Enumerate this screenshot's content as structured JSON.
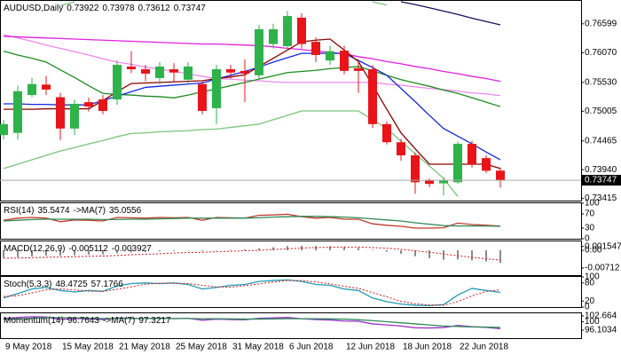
{
  "chart_data": [
    {
      "type": "candlestick",
      "title": "AUDUSD,Daily",
      "categories": [
        "9 May 2018",
        null,
        null,
        null,
        "15 May 2018",
        null,
        null,
        null,
        "21 May 2018",
        null,
        null,
        null,
        "25 May 2018",
        null,
        null,
        null,
        "31 May 2018",
        null,
        null,
        null,
        "6 Jun 2018",
        null,
        null,
        null,
        "12 Jun 2018",
        null,
        null,
        null,
        "18 Jun 2018",
        null,
        null,
        null,
        "22 Jun 2018",
        null,
        null,
        null
      ],
      "open": [
        0.7457,
        0.7461,
        0.753,
        0.7549,
        0.7526,
        0.7469,
        0.7517,
        0.7522,
        0.7522,
        0.7582,
        0.7577,
        0.7561,
        0.7577,
        0.7558,
        0.755,
        0.7506,
        0.7577,
        0.7574,
        0.7566,
        0.7623,
        0.7619,
        0.7671,
        0.7627,
        0.7593,
        0.7611,
        0.7579,
        0.7577,
        0.7477,
        0.7444,
        0.742,
        0.7374,
        0.7369,
        0.7371,
        0.7441,
        0.7415,
        0.73922
      ],
      "high": [
        0.7485,
        0.7547,
        0.7561,
        0.7565,
        0.7534,
        0.7522,
        0.7525,
        0.753,
        0.7593,
        0.761,
        0.7585,
        0.759,
        0.7588,
        0.759,
        0.7555,
        0.7585,
        0.7585,
        0.7595,
        0.7658,
        0.766,
        0.7683,
        0.7679,
        0.7635,
        0.762,
        0.762,
        0.7593,
        0.7585,
        0.7482,
        0.745,
        0.7425,
        0.7378,
        0.738,
        0.7445,
        0.7447,
        0.742,
        0.73978
      ],
      "low": [
        0.7449,
        0.7449,
        0.7526,
        0.753,
        0.7448,
        0.7457,
        0.75,
        0.7495,
        0.7512,
        0.757,
        0.7555,
        0.755,
        0.7555,
        0.755,
        0.7495,
        0.7477,
        0.756,
        0.7517,
        0.756,
        0.7615,
        0.7612,
        0.7615,
        0.759,
        0.7585,
        0.7568,
        0.7534,
        0.747,
        0.744,
        0.741,
        0.735,
        0.7362,
        0.7347,
        0.7368,
        0.7398,
        0.7388,
        0.73612
      ],
      "close": [
        0.7477,
        0.7537,
        0.755,
        0.754,
        0.7469,
        0.7514,
        0.7509,
        0.7501,
        0.7585,
        0.7577,
        0.7569,
        0.7582,
        0.7571,
        0.7582,
        0.7501,
        0.7577,
        0.7571,
        0.7569,
        0.765,
        0.765,
        0.7674,
        0.7623,
        0.7603,
        0.761,
        0.7574,
        0.7574,
        0.7477,
        0.7444,
        0.742,
        0.7371,
        0.7368,
        0.7374,
        0.7441,
        0.7404,
        0.7392,
        0.73747
      ],
      "up_color": "#2db34a",
      "down_color": "#e8141a",
      "series": [
        {
          "color": "#7ac47a",
          "values": [
            null,
            null,
            null,
            null,
            0.7693,
            0.77,
            null,
            null,
            null,
            null,
            null,
            null,
            null,
            null,
            null,
            null,
            null,
            null,
            null,
            null,
            null,
            null,
            null,
            null,
            null,
            null,
            0.77,
            0.7694,
            null,
            null,
            null,
            null,
            null,
            null,
            null,
            null
          ]
        },
        {
          "color": "#7ac47a",
          "values": [
            0.7396,
            0.7404,
            0.7412,
            0.742,
            0.7428,
            0.7434,
            0.7441,
            0.7447,
            0.7454,
            0.746,
            0.7461,
            0.7463,
            0.7464,
            0.7465,
            0.7467,
            0.7468,
            0.7471,
            0.7474,
            0.7477,
            0.7485,
            0.7493,
            0.7501,
            0.7501,
            0.7501,
            0.7501,
            0.7501,
            0.7485,
            0.7469,
            0.7446,
            0.7423,
            0.7401,
            0.7378,
            0.7345,
            null,
            null,
            null
          ]
        },
        {
          "color": "#14145a",
          "values": [
            null,
            null,
            null,
            null,
            null,
            null,
            null,
            null,
            null,
            null,
            null,
            null,
            null,
            null,
            null,
            null,
            null,
            null,
            null,
            null,
            null,
            null,
            null,
            null,
            null,
            null,
            null,
            null,
            0.77,
            0.7695,
            0.7689,
            0.7683,
            0.7677,
            0.767,
            0.7664,
            0.7658
          ]
        },
        {
          "color": "#ee88ee",
          "values": [
            0.764,
            0.7634,
            0.7628,
            0.7621,
            0.7615,
            0.7609,
            0.7603,
            0.7596,
            0.759,
            0.7586,
            0.7581,
            0.7577,
            0.7573,
            0.7569,
            0.7564,
            0.756,
            0.7559,
            0.7557,
            0.7556,
            0.7554,
            0.7553,
            0.7553,
            0.7553,
            0.7553,
            0.7553,
            0.7553,
            0.7553,
            0.755,
            0.7548,
            0.7545,
            0.7542,
            0.754,
            0.7537,
            0.7534,
            0.7532,
            0.7529
          ]
        },
        {
          "color": "#e020e0",
          "values": [
            0.7637,
            0.7636,
            0.7635,
            0.7634,
            0.7633,
            0.7632,
            0.7631,
            0.763,
            0.7629,
            0.7628,
            0.7627,
            0.7626,
            0.7625,
            0.7624,
            0.7623,
            0.7623,
            0.7622,
            0.7621,
            0.762,
            0.7618,
            0.7615,
            0.7613,
            0.761,
            0.7608,
            0.7605,
            0.76,
            0.7596,
            0.7591,
            0.7587,
            0.7582,
            0.7578,
            0.7573,
            0.7569,
            0.7564,
            0.756,
            0.7555
          ]
        },
        {
          "color": "#1e8c1e",
          "values": [
            0.761,
            0.7603,
            0.7597,
            0.759,
            0.7576,
            0.7562,
            0.7547,
            0.7533,
            0.7531,
            0.753,
            0.7528,
            0.7527,
            0.7525,
            0.753,
            0.7536,
            0.7541,
            0.7547,
            0.7553,
            0.7559,
            0.7565,
            0.7571,
            0.7573,
            0.7575,
            0.7578,
            0.758,
            0.7582,
            0.7574,
            0.7566,
            0.7558,
            0.7552,
            0.7546,
            0.7539,
            0.7533,
            0.7525,
            0.7517,
            0.7509
          ]
        },
        {
          "color": "#1428e0",
          "values": [
            0.7514,
            0.7514,
            0.7513,
            0.7513,
            0.7512,
            0.7512,
            0.7512,
            0.752,
            0.7528,
            0.7536,
            0.7544,
            0.7546,
            0.7548,
            0.755,
            0.7552,
            0.7559,
            0.7566,
            0.7573,
            0.7581,
            0.759,
            0.7598,
            0.7606,
            0.7606,
            0.7606,
            0.7606,
            0.7593,
            0.758,
            0.7566,
            0.7542,
            0.7518,
            0.7493,
            0.7469,
            0.7455,
            0.7441,
            0.7426,
            0.7412
          ]
        },
        {
          "color": "#8b0000",
          "values": [
            0.7504,
            0.7504,
            0.7504,
            0.7505,
            0.7505,
            0.7505,
            0.7505,
            0.752,
            0.7536,
            0.7551,
            0.7552,
            0.7553,
            0.7554,
            0.7555,
            0.7556,
            0.756,
            0.7563,
            0.7567,
            0.7582,
            0.7597,
            0.7612,
            0.7627,
            0.763,
            0.7632,
            0.7612,
            0.7591,
            0.7548,
            0.7504,
            0.7461,
            0.7432,
            0.7404,
            0.7404,
            0.7404,
            0.7404,
            0.7404,
            0.7396
          ]
        }
      ],
      "ylim": [
        0.7336,
        0.77
      ],
      "yticks": [
        0.76599,
        {
          "value": 0.7607,
          "label": "0.76070"
        },
        {
          "value": 0.7553,
          "label": "0.75530"
        },
        0.75005,
        0.74465,
        {
          "value": 0.7394,
          "label": "0.73940"
        },
        0.73415
      ]
    },
    {
      "type": "line",
      "series": [
        {
          "name": "RSI(14)",
          "color": "#c0392b",
          "values": [
            52,
            58,
            60,
            58,
            48,
            53,
            52,
            50,
            60,
            59,
            58,
            60,
            59,
            60,
            52,
            60,
            59,
            58,
            66,
            67,
            69,
            62,
            58,
            60,
            55,
            55,
            42,
            38,
            35,
            30,
            30,
            31,
            44,
            40,
            38,
            35.5474
          ]
        },
        {
          "name": "->MA(7)",
          "color": "#2e8b57",
          "values": [
            50,
            52,
            54,
            55,
            55,
            55,
            55,
            54,
            54,
            55,
            55,
            56,
            57,
            58,
            58,
            58,
            58,
            58,
            59,
            61,
            62,
            63,
            63,
            62,
            61,
            59,
            56,
            53,
            50,
            45,
            41,
            37,
            36,
            36,
            36,
            35.0556
          ]
        }
      ],
      "ylim": [
        0,
        100
      ],
      "yticks": [
        100,
        70,
        30,
        0
      ]
    },
    {
      "type": "bar",
      "series": [
        {
          "name": "MACD(12,26,9)",
          "style": "bar",
          "color": "#8c8c8c",
          "values": [
            -0.003,
            -0.0028,
            -0.0025,
            -0.0022,
            -0.0022,
            -0.002,
            -0.0018,
            -0.0017,
            -0.0012,
            -0.0008,
            -0.0006,
            -0.0004,
            -0.0003,
            -0.0001,
            -0.0003,
            0.0,
            0.0002,
            0.0003,
            0.0008,
            0.0012,
            0.0017,
            0.0018,
            0.0017,
            0.0016,
            0.0013,
            0.001,
            0.0002,
            -0.0006,
            -0.0014,
            -0.0024,
            -0.0032,
            -0.0038,
            -0.0037,
            -0.004,
            -0.0045,
            -0.005112
          ]
        },
        {
          "style": "dotted",
          "color": "#e8141a",
          "values": [
            -0.0032,
            -0.0031,
            -0.003,
            -0.0028,
            -0.0027,
            -0.0026,
            -0.0024,
            -0.0023,
            -0.0021,
            -0.0018,
            -0.0016,
            -0.0014,
            -0.0011,
            -0.0009,
            -0.0008,
            -0.0006,
            -0.0004,
            -0.0002,
            0.0,
            0.0003,
            0.0006,
            0.0009,
            0.0011,
            0.0012,
            0.0013,
            0.0013,
            0.0011,
            0.0008,
            0.0004,
            -0.0002,
            -0.0008,
            -0.0015,
            -0.0022,
            -0.0028,
            -0.0034,
            -0.003927
          ]
        }
      ],
      "ylim": [
        -0.00997,
        0.00356
      ],
      "yticks": [
        0.001547,
        {
          "value": 0,
          "label": "0.00"
        },
        -0.00712
      ]
    },
    {
      "type": "line",
      "series": [
        {
          "name": "Stoch(5,3,3)",
          "color": "#1f9bb4",
          "values": [
            30,
            45,
            60,
            65,
            55,
            50,
            55,
            52,
            70,
            78,
            80,
            78,
            80,
            75,
            60,
            65,
            72,
            75,
            85,
            88,
            90,
            85,
            75,
            72,
            60,
            55,
            30,
            18,
            10,
            6,
            5,
            8,
            40,
            62,
            55,
            48.4725
          ]
        },
        {
          "style": "dotted",
          "color": "#e8141a",
          "values": [
            35,
            38,
            47,
            57,
            60,
            57,
            53,
            52,
            59,
            67,
            76,
            79,
            79,
            78,
            72,
            67,
            66,
            71,
            77,
            83,
            88,
            88,
            83,
            77,
            69,
            62,
            48,
            34,
            19,
            11,
            7,
            6,
            18,
            37,
            52,
            57.1766
          ]
        }
      ],
      "ylim": [
        0,
        100
      ],
      "yticks": [
        100,
        80,
        20,
        0
      ]
    },
    {
      "type": "line",
      "series": [
        {
          "name": "Momentum(14)",
          "color": "#9b30c8",
          "values": [
            101.5,
            102,
            102.3,
            102.2,
            101,
            101.5,
            101.3,
            101,
            101.8,
            101.6,
            101.5,
            101.7,
            101.4,
            101.6,
            100.7,
            101.2,
            101,
            100.9,
            101.6,
            101.8,
            102,
            101.4,
            101,
            100.8,
            100.3,
            100.2,
            99,
            98.5,
            98,
            97.2,
            97.1,
            97.3,
            98.3,
            97.7,
            97.4,
            96.7643
          ]
        },
        {
          "name": "->MA(7)",
          "color": "#2e8b57",
          "values": [
            101,
            101.3,
            101.6,
            101.9,
            101.9,
            101.8,
            101.6,
            101.5,
            101.5,
            101.5,
            101.5,
            101.5,
            101.5,
            101.5,
            101.4,
            101.4,
            101.3,
            101.2,
            101.2,
            101.3,
            101.4,
            101.4,
            101.4,
            101.3,
            101.2,
            100.9,
            100.5,
            100,
            99.5,
            99,
            98.5,
            98,
            97.8,
            97.6,
            97.5,
            97.3217
          ]
        }
      ],
      "ylim": [
        92.4,
        103.9
      ],
      "yticks": [
        102.664,
        100,
        96.1034
      ]
    }
  ]
}
